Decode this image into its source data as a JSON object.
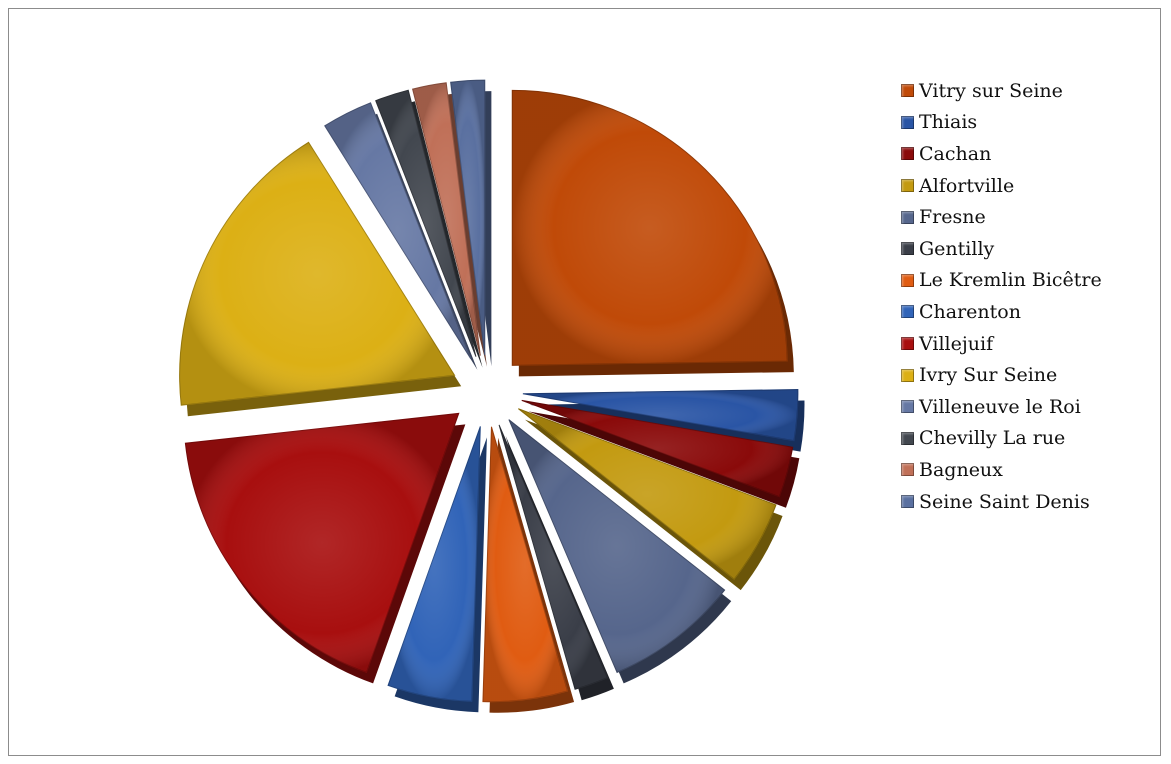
{
  "chart_data": {
    "type": "pie",
    "title": "",
    "legend_position": "right",
    "categories": [
      "Vitry sur Seine",
      "Thiais",
      "Cachan",
      "Alfortville",
      "Fresne",
      "Gentilly",
      "Le Kremlin Bicêtre",
      "Charenton",
      "Villejuif",
      "Ivry Sur Seine",
      "Villeneuve le Roi",
      "Chevilly La rue",
      "Bagneux",
      "Seine Saint Denis"
    ],
    "values": [
      25,
      3,
      3,
      5,
      8,
      2,
      5,
      5,
      18,
      18,
      3,
      2,
      2,
      2
    ],
    "value_unit": "percent",
    "colors": [
      "#c04a08",
      "#2a55a5",
      "#8a0a0a",
      "#c39a10",
      "#56668c",
      "#3a3e48",
      "#e05c12",
      "#3164b8",
      "#a80f0f",
      "#dcb015",
      "#6678a4",
      "#42474f",
      "#c07058",
      "#5a70a0"
    ]
  }
}
